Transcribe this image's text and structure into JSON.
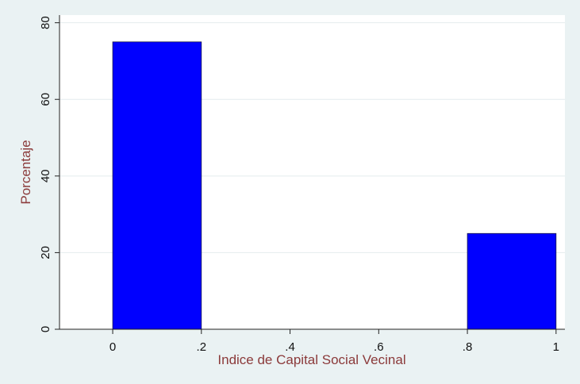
{
  "chart_data": {
    "type": "histogram",
    "x_label": "Indice de Capital Social Vecinal",
    "y_label": "Porcentaje",
    "bins": [
      0,
      0.2,
      0.4,
      0.6,
      0.8,
      1
    ],
    "values": [
      75,
      0,
      0,
      0,
      25
    ],
    "color": "#0000ff",
    "xlim": [
      -0.12,
      1.02
    ],
    "ylim": [
      0,
      82
    ],
    "xticks": [
      0,
      {
        "value": 0.2,
        "label": ".2"
      },
      {
        "value": 0.4,
        "label": ".4"
      },
      {
        "value": 0.6,
        "label": ".6"
      },
      {
        "value": 0.8,
        "label": ".8"
      },
      1
    ],
    "yticks": [
      0,
      20,
      40,
      60,
      80
    ],
    "grid": true
  }
}
